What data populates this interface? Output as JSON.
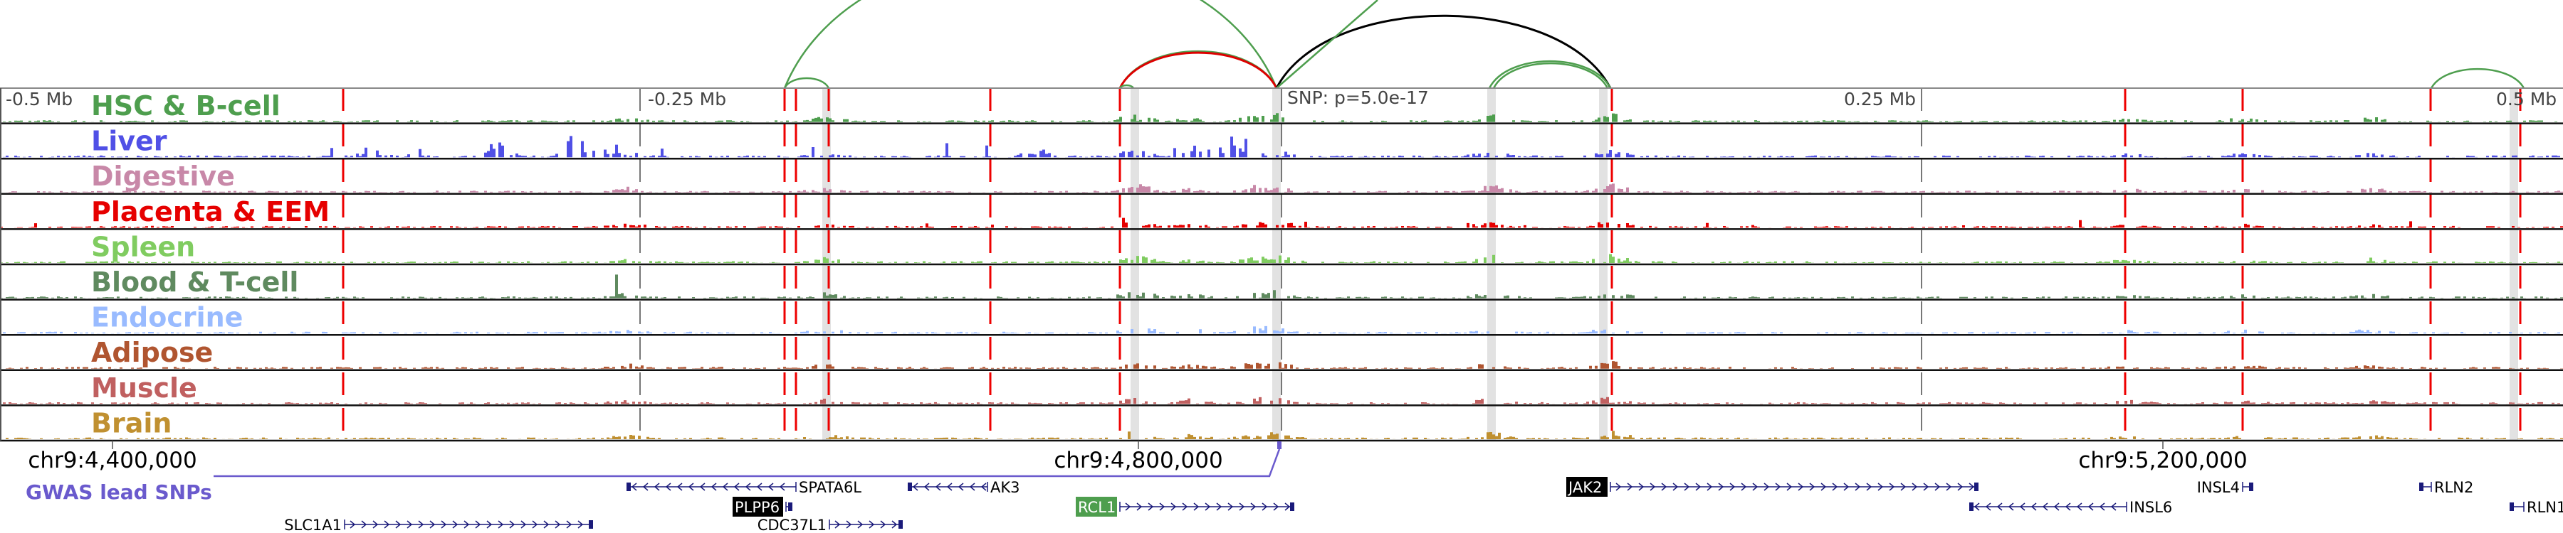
{
  "colors": {
    "highlight_line": "#ee0000",
    "gwas": "#6a5acd",
    "gene": "#1a1a7a"
  },
  "tracks": [
    {
      "label": "HSC & B-cell",
      "color": "#4e9e4e"
    },
    {
      "label": "Liver",
      "color": "#5050e6"
    },
    {
      "label": "Digestive",
      "color": "#c888a8"
    },
    {
      "label": "Placenta & EEM",
      "color": "#e60000"
    },
    {
      "label": "Spleen",
      "color": "#80cc60"
    },
    {
      "label": "Blood & T-cell",
      "color": "#5f8a5f"
    },
    {
      "label": "Endocrine",
      "color": "#99bbff"
    },
    {
      "label": "Adipose",
      "color": "#b05530"
    },
    {
      "label": "Muscle",
      "color": "#c06060"
    },
    {
      "label": "Brain",
      "color": "#c09030"
    }
  ],
  "offsets": {
    "m05": "-0.5 Mb",
    "m025": "-0.25 Mb",
    "p025": "0.25 Mb",
    "p05": "0.5 Mb",
    "snp": "SNP: p=5.0e-17"
  },
  "axis": {
    "t1": "chr9:4,400,000",
    "t2": "chr9:4,800,000",
    "t3": "chr9:5,200,000"
  },
  "gwas_label": "GWAS lead SNPs",
  "genes": {
    "spata6l": "SPATA6L",
    "ak3": "AK3",
    "jak2": "JAK2",
    "insl4": "INSL4",
    "rln2": "RLN2",
    "plpp6": "PLPP6",
    "rcl1": "RCL1",
    "insl6": "INSL6",
    "rln1": "RLN1",
    "slc1a1": "SLC1A1",
    "cdc37l1": "CDC37L1"
  }
}
